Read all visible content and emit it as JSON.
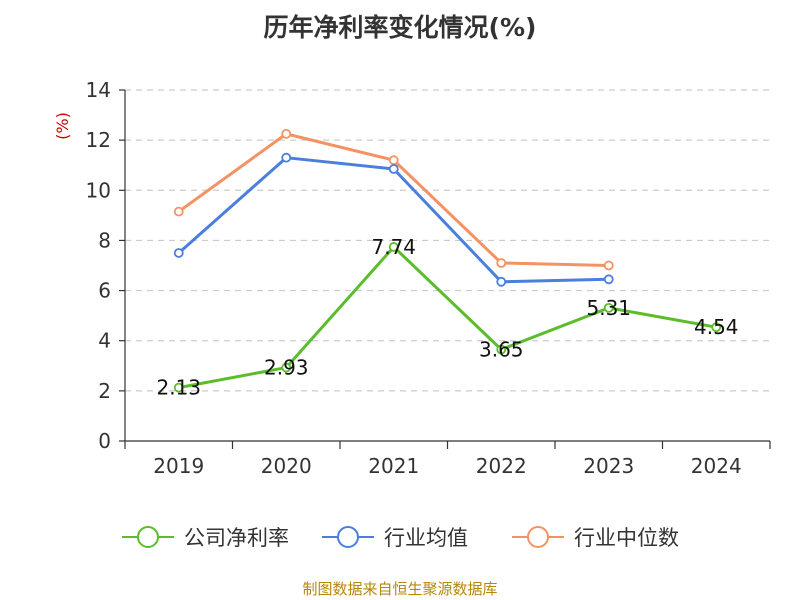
{
  "chart_data": {
    "type": "line",
    "title": "历年净利率变化情况(%)",
    "ylabel": "(%)",
    "categories": [
      "2019",
      "2020",
      "2021",
      "2022",
      "2023",
      "2024"
    ],
    "yticks": [
      "0",
      "2",
      "4",
      "6",
      "8",
      "10",
      "12",
      "14"
    ],
    "ylim": [
      0,
      14
    ],
    "grid": true,
    "legend_position": "bottom",
    "series": [
      {
        "name": "公司净利率",
        "color": "#5bbd2b",
        "values": [
          2.13,
          2.93,
          7.74,
          3.65,
          5.31,
          4.54
        ],
        "labels": [
          "2.13",
          "2.93",
          "7.74",
          "3.65",
          "5.31",
          "4.54"
        ]
      },
      {
        "name": "行业均值",
        "color": "#4a7fde",
        "values": [
          7.5,
          11.3,
          10.85,
          6.35,
          6.45,
          null
        ]
      },
      {
        "name": "行业中位数",
        "color": "#f59263",
        "values": [
          9.15,
          12.25,
          11.2,
          7.1,
          7.0,
          null
        ]
      }
    ]
  },
  "source": "制图数据来自恒生聚源数据库",
  "colors": {
    "axis": "#333333",
    "grid": "#cccccc",
    "source_text": "#b8860b",
    "unit_label": "#cc0000"
  }
}
